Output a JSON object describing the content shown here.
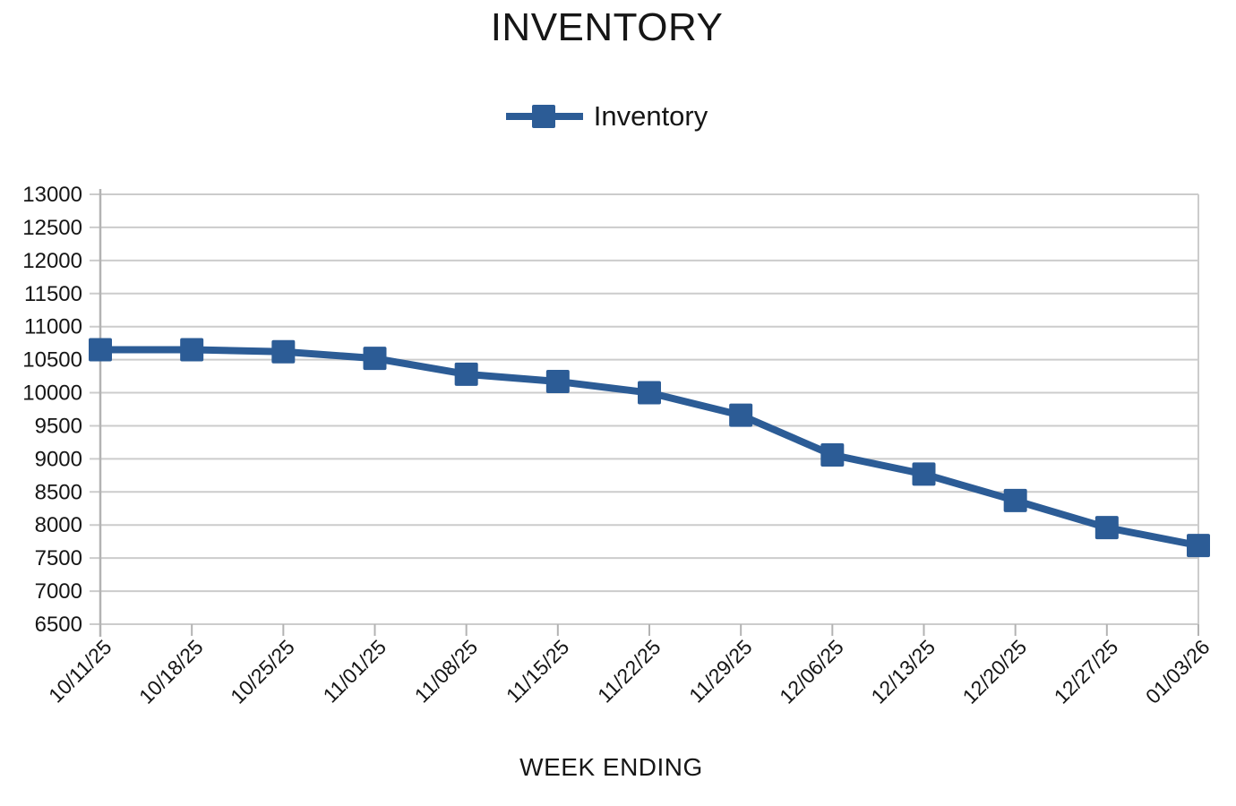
{
  "chart_data": {
    "type": "line",
    "title": "INVENTORY",
    "xlabel": "WEEK ENDING",
    "ylabel": "",
    "categories": [
      "10/11/25",
      "10/18/25",
      "10/25/25",
      "11/01/25",
      "11/08/25",
      "11/15/25",
      "11/22/25",
      "11/29/25",
      "12/06/25",
      "12/13/25",
      "12/20/25",
      "12/27/25",
      "01/03/26"
    ],
    "series": [
      {
        "name": "Inventory",
        "values": [
          10650,
          10650,
          10620,
          10520,
          10280,
          10170,
          10000,
          9660,
          9060,
          8770,
          8370,
          7960,
          7690
        ]
      }
    ],
    "ylim": [
      6500,
      13000
    ],
    "ytick_step": 500,
    "grid": "horizontal",
    "legend_position": "top",
    "marker": "square",
    "colors": {
      "series": "#2c5c96",
      "gridline": "#cccccc",
      "axis": "#b3b3b3",
      "text": "#161616"
    }
  }
}
